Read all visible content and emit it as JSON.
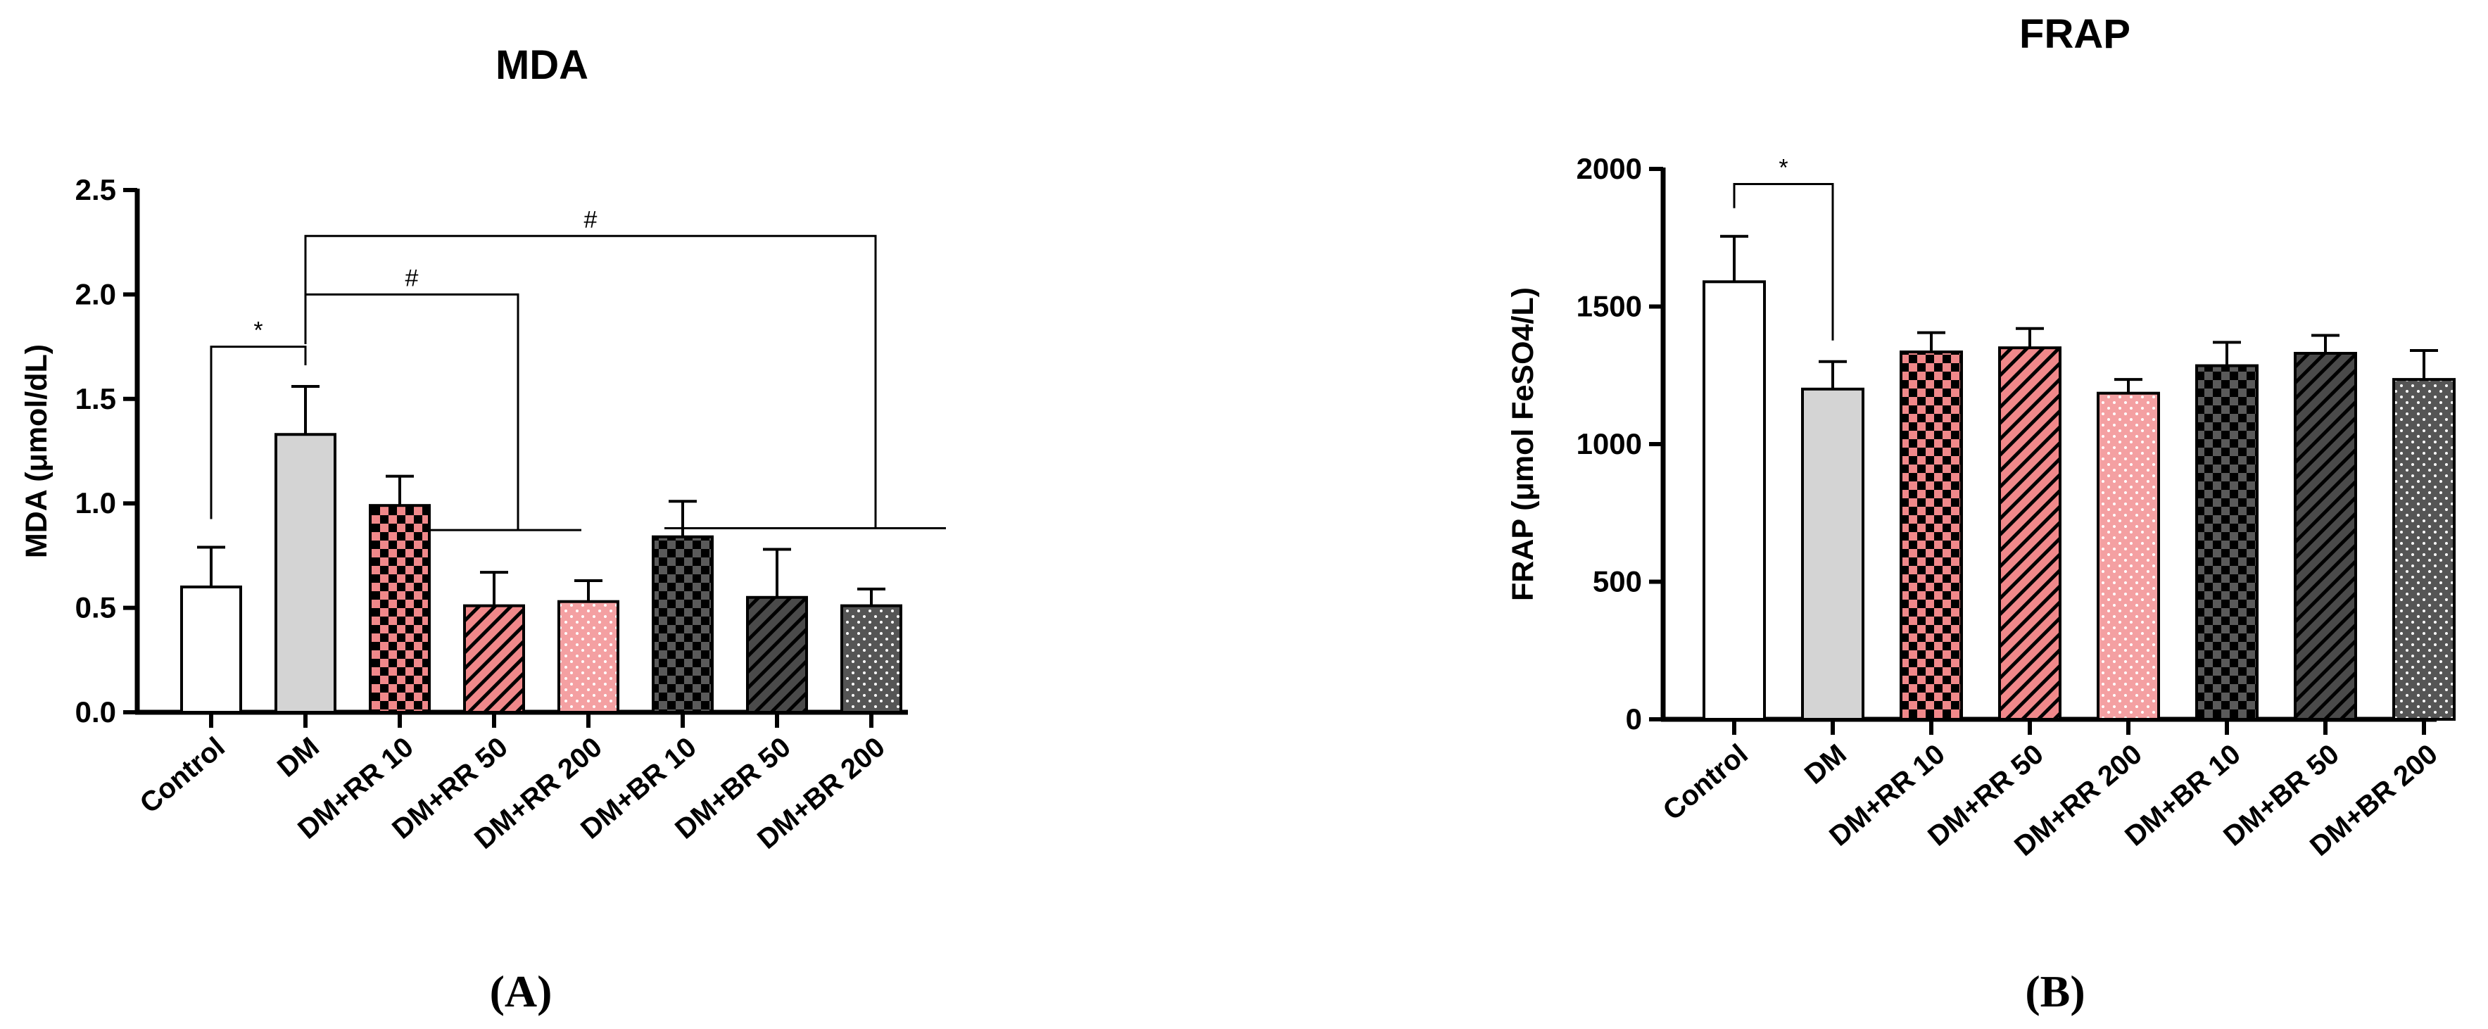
{
  "chart_data": [
    {
      "type": "bar",
      "panel_label": "(A)",
      "title": "MDA",
      "xlabel": "",
      "ylabel": "MDA (μmol/dL)",
      "ylim": [
        0,
        2.5
      ],
      "yticks": [
        "0.0",
        "0.5",
        "1.0",
        "1.5",
        "2.0",
        "2.5"
      ],
      "categories": [
        "Control",
        "DM",
        "DM+RR 10",
        "DM+RR 50",
        "DM+RR 200",
        "DM+BR 10",
        "DM+BR 50",
        "DM+BR 200"
      ],
      "values": [
        0.6,
        1.33,
        0.99,
        0.51,
        0.53,
        0.84,
        0.55,
        0.51
      ],
      "errors": [
        0.19,
        0.23,
        0.14,
        0.16,
        0.1,
        0.17,
        0.23,
        0.08
      ],
      "grid": false,
      "significance": [
        {
          "label": "*",
          "from": "Control",
          "to": "DM",
          "y": 1.75
        },
        {
          "label": "#",
          "from": "DM",
          "to": "DM+RR 10 to DM+RR 200",
          "y": 2.0
        },
        {
          "label": "#",
          "from": "DM",
          "to": "DM+BR 10 to DM+BR 200",
          "y": 2.28
        }
      ]
    },
    {
      "type": "bar",
      "panel_label": "(B)",
      "title": "FRAP",
      "xlabel": "",
      "ylabel": "FRAP (μmol FeSO4/L)",
      "ylim": [
        0,
        2000
      ],
      "yticks": [
        "0",
        "500",
        "1000",
        "1500",
        "2000"
      ],
      "categories": [
        "Control",
        "DM",
        "DM+RR 10",
        "DM+RR 50",
        "DM+RR 200",
        "DM+BR 10",
        "DM+BR 50",
        "DM+BR 200"
      ],
      "values": [
        1590,
        1200,
        1335,
        1350,
        1185,
        1285,
        1330,
        1235
      ],
      "errors": [
        165,
        100,
        70,
        70,
        50,
        85,
        65,
        105
      ],
      "grid": false,
      "significance": [
        {
          "label": "*",
          "from": "Control",
          "to": "DM",
          "y": 1945
        }
      ]
    }
  ],
  "bar_styles": [
    "white",
    "lightgray",
    "pink-checker",
    "pink-hatch",
    "pink-dots",
    "dark-checker",
    "dark-hatch",
    "dark-dots"
  ],
  "colors": {
    "pink": "#f0888a",
    "dark": "#4a4a4a",
    "light_gray": "#d4d4d4",
    "axis": "#000000"
  }
}
